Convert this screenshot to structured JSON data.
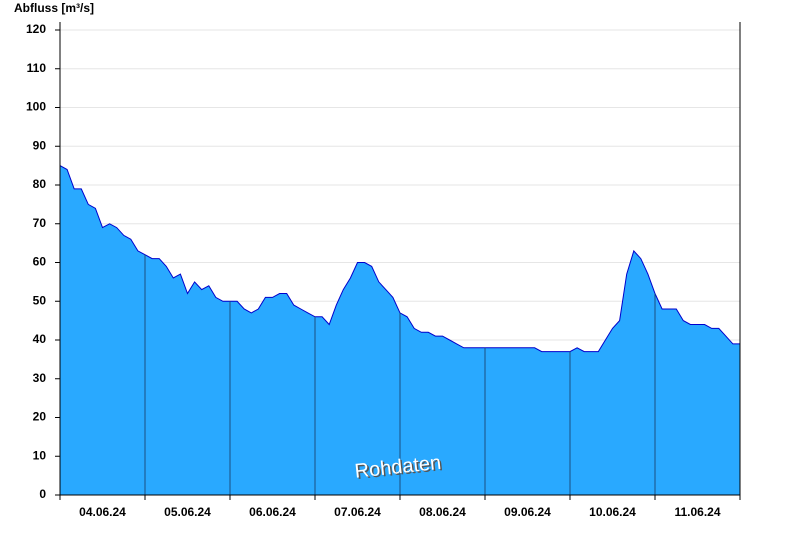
{
  "chart_data": {
    "type": "area",
    "ylabel": "Abfluss [m³/s]",
    "annotation": "Rohdaten",
    "categories": [
      "04.06.24",
      "05.06.24",
      "06.06.24",
      "07.06.24",
      "08.06.24",
      "09.06.24",
      "10.06.24",
      "11.06.24"
    ],
    "values": [
      [
        85,
        84,
        79,
        79,
        75,
        74,
        69,
        70,
        69,
        67,
        66,
        63
      ],
      [
        62,
        61,
        61,
        59,
        56,
        57,
        52,
        55,
        53,
        54,
        51,
        50
      ],
      [
        50,
        50,
        48,
        47,
        48,
        51,
        51,
        52,
        52,
        49,
        48,
        47
      ],
      [
        46,
        46,
        44,
        49,
        53,
        56,
        60,
        60,
        59,
        55,
        53,
        51
      ],
      [
        47,
        46,
        43,
        42,
        42,
        41,
        41,
        40,
        39,
        38,
        38,
        38
      ],
      [
        38,
        38,
        38,
        38,
        38,
        38,
        38,
        38,
        37,
        37,
        37,
        37
      ],
      [
        37,
        38,
        37,
        37,
        37,
        40,
        43,
        45,
        57,
        63,
        61,
        57
      ],
      [
        52,
        48,
        48,
        48,
        45,
        44,
        44,
        44,
        43,
        43,
        41,
        39
      ]
    ],
    "color": "#29a9ff",
    "line_color": "#0000cc",
    "ylim": [
      0,
      120
    ],
    "yticks": [
      0,
      10,
      20,
      30,
      40,
      50,
      60,
      70,
      80,
      90,
      100,
      110,
      120
    ],
    "grid": true
  }
}
